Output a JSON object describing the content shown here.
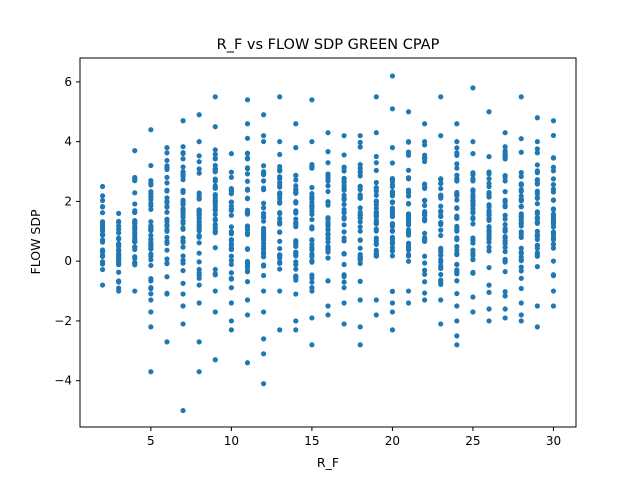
{
  "chart_data": {
    "type": "scatter",
    "title": "R_F vs FLOW SDP GREEN CPAP",
    "xlabel": "R_F",
    "ylabel": "FLOW SDP",
    "xlim": [
      0.6,
      31.4
    ],
    "ylim": [
      -5.55,
      6.8
    ],
    "xticks": [
      5,
      10,
      15,
      20,
      25,
      30
    ],
    "yticks": [
      -4,
      -2,
      0,
      2,
      4,
      6
    ],
    "xtick_labels": [
      "5",
      "10",
      "15",
      "20",
      "25",
      "30"
    ],
    "ytick_labels": [
      "−4",
      "−2",
      "0",
      "2",
      "4",
      "6"
    ],
    "grid": false,
    "marker_color": "#1f77b4",
    "columns": [
      {
        "x": 2,
        "ymin": -0.8,
        "ymax": 2.5,
        "mid": 0.6,
        "n": 26,
        "extra": []
      },
      {
        "x": 3,
        "ymin": -1.0,
        "ymax": 1.6,
        "mid": 0.3,
        "n": 28,
        "extra": []
      },
      {
        "x": 4,
        "ymin": -1.0,
        "ymax": 2.8,
        "mid": 0.6,
        "n": 30,
        "extra": [
          3.7
        ]
      },
      {
        "x": 5,
        "ymin": -1.3,
        "ymax": 3.2,
        "mid": 0.8,
        "n": 34,
        "extra": [
          4.4,
          -1.7,
          -2.2,
          -3.7
        ]
      },
      {
        "x": 6,
        "ymin": -1.1,
        "ymax": 3.8,
        "mid": 1.0,
        "n": 32,
        "extra": [
          -2.7
        ]
      },
      {
        "x": 7,
        "ymin": -1.1,
        "ymax": 4.7,
        "mid": 1.2,
        "n": 34,
        "extra": [
          -1.5,
          -2.1,
          -5.0
        ]
      },
      {
        "x": 8,
        "ymin": -0.8,
        "ymax": 4.0,
        "mid": 1.3,
        "n": 32,
        "extra": [
          4.9,
          -1.4,
          -2.7,
          -3.7
        ]
      },
      {
        "x": 9,
        "ymin": -1.0,
        "ymax": 4.5,
        "mid": 1.4,
        "n": 36,
        "extra": [
          5.5,
          -1.7,
          -3.3
        ]
      },
      {
        "x": 10,
        "ymin": -1.4,
        "ymax": 3.6,
        "mid": 1.0,
        "n": 34,
        "extra": [
          -2.0,
          -2.3
        ]
      },
      {
        "x": 11,
        "ymin": -1.3,
        "ymax": 4.6,
        "mid": 1.2,
        "n": 36,
        "extra": [
          5.4,
          -1.8,
          -3.4
        ]
      },
      {
        "x": 12,
        "ymin": -1.0,
        "ymax": 4.2,
        "mid": 1.2,
        "n": 34,
        "extra": [
          4.9,
          -1.7,
          -2.6,
          -3.1,
          -4.1
        ]
      },
      {
        "x": 13,
        "ymin": -1.0,
        "ymax": 4.0,
        "mid": 1.3,
        "n": 34,
        "extra": [
          5.5,
          -2.3
        ]
      },
      {
        "x": 14,
        "ymin": -1.1,
        "ymax": 3.8,
        "mid": 1.2,
        "n": 34,
        "extra": [
          4.6,
          -2.0,
          -2.3
        ]
      },
      {
        "x": 15,
        "ymin": -1.0,
        "ymax": 4.0,
        "mid": 1.2,
        "n": 34,
        "extra": [
          5.4,
          -1.9,
          -2.8
        ]
      },
      {
        "x": 16,
        "ymin": -1.5,
        "ymax": 4.3,
        "mid": 1.5,
        "n": 34,
        "extra": [
          -1.8
        ]
      },
      {
        "x": 17,
        "ymin": -1.4,
        "ymax": 4.2,
        "mid": 1.5,
        "n": 34,
        "extra": [
          -2.1
        ]
      },
      {
        "x": 18,
        "ymin": -1.3,
        "ymax": 4.2,
        "mid": 1.4,
        "n": 34,
        "extra": [
          -2.2,
          -2.8
        ]
      },
      {
        "x": 19,
        "ymin": -1.3,
        "ymax": 4.3,
        "mid": 1.5,
        "n": 34,
        "extra": [
          5.5,
          -1.8
        ]
      },
      {
        "x": 20,
        "ymin": -1.4,
        "ymax": 3.8,
        "mid": 1.4,
        "n": 36,
        "extra": [
          6.2,
          5.1,
          -1.7,
          -2.3
        ]
      },
      {
        "x": 21,
        "ymin": -1.0,
        "ymax": 4.0,
        "mid": 1.5,
        "n": 34,
        "extra": [
          5.0,
          -1.4
        ]
      },
      {
        "x": 22,
        "ymin": -1.3,
        "ymax": 4.0,
        "mid": 1.5,
        "n": 34,
        "extra": [
          4.6
        ]
      },
      {
        "x": 23,
        "ymin": -1.3,
        "ymax": 4.2,
        "mid": 1.6,
        "n": 34,
        "extra": [
          5.5,
          -2.1
        ]
      },
      {
        "x": 24,
        "ymin": -1.5,
        "ymax": 4.0,
        "mid": 1.7,
        "n": 38,
        "extra": [
          4.6,
          -2.0,
          -2.5,
          -2.8
        ]
      },
      {
        "x": 25,
        "ymin": -1.2,
        "ymax": 3.6,
        "mid": 1.6,
        "n": 34,
        "extra": [
          5.8,
          4.0,
          -1.7
        ]
      },
      {
        "x": 26,
        "ymin": -1.6,
        "ymax": 3.5,
        "mid": 1.4,
        "n": 34,
        "extra": [
          5.0,
          -2.0
        ]
      },
      {
        "x": 27,
        "ymin": -1.6,
        "ymax": 4.3,
        "mid": 1.5,
        "n": 34,
        "extra": [
          -1.9
        ]
      },
      {
        "x": 28,
        "ymin": -1.4,
        "ymax": 4.1,
        "mid": 1.5,
        "n": 34,
        "extra": [
          5.5,
          -1.8,
          -2.0
        ]
      },
      {
        "x": 29,
        "ymin": -1.5,
        "ymax": 4.0,
        "mid": 1.4,
        "n": 34,
        "extra": [
          4.8,
          -2.2
        ]
      },
      {
        "x": 30,
        "ymin": -1.0,
        "ymax": 4.7,
        "mid": 1.4,
        "n": 34,
        "extra": [
          -1.5
        ]
      }
    ]
  }
}
